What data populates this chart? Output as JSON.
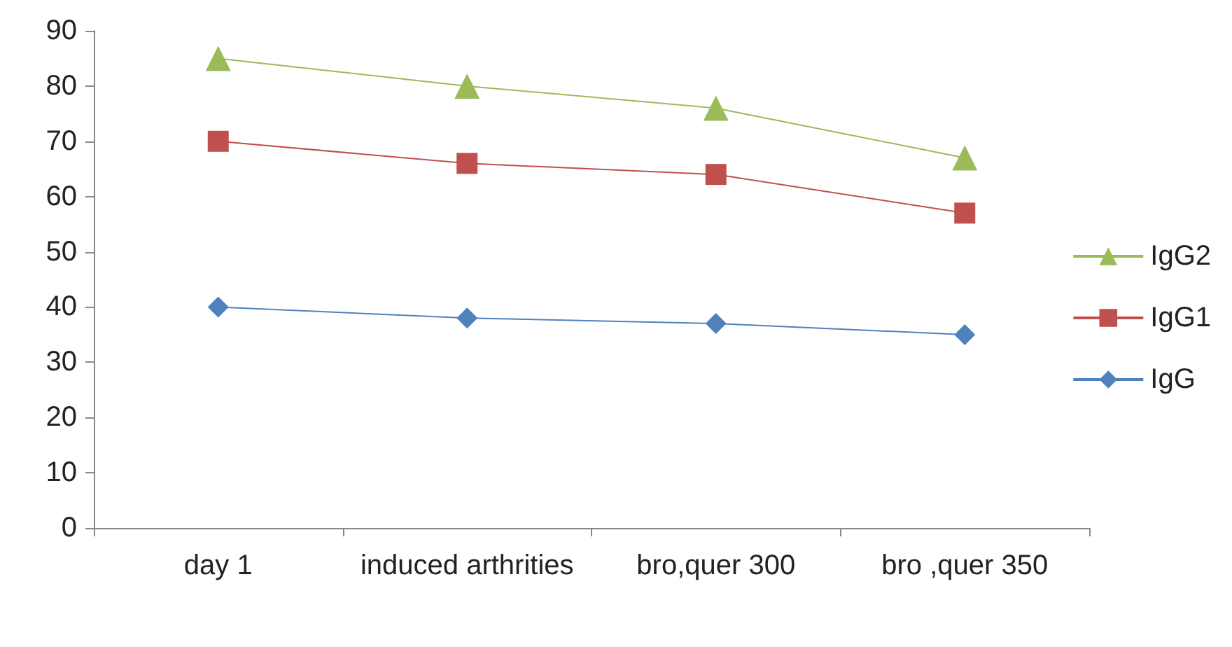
{
  "chart_data": {
    "type": "line",
    "categories": [
      "day 1",
      "induced arthrities",
      "bro,quer 300",
      "bro ,quer 350"
    ],
    "series": [
      {
        "name": "IgG2",
        "color": "#9bbb59",
        "marker": "triangle",
        "values": [
          85,
          80,
          76,
          67
        ]
      },
      {
        "name": "IgG1",
        "color": "#c0504d",
        "marker": "square",
        "values": [
          70,
          66,
          64,
          57
        ]
      },
      {
        "name": "IgG",
        "color": "#4f81bd",
        "marker": "diamond",
        "values": [
          40,
          38,
          37,
          35
        ]
      }
    ],
    "ylim": [
      0,
      90
    ],
    "yticks": [
      0,
      10,
      20,
      30,
      40,
      50,
      60,
      70,
      80,
      90
    ],
    "grid": false,
    "legend": "right",
    "line_style": "solid"
  }
}
